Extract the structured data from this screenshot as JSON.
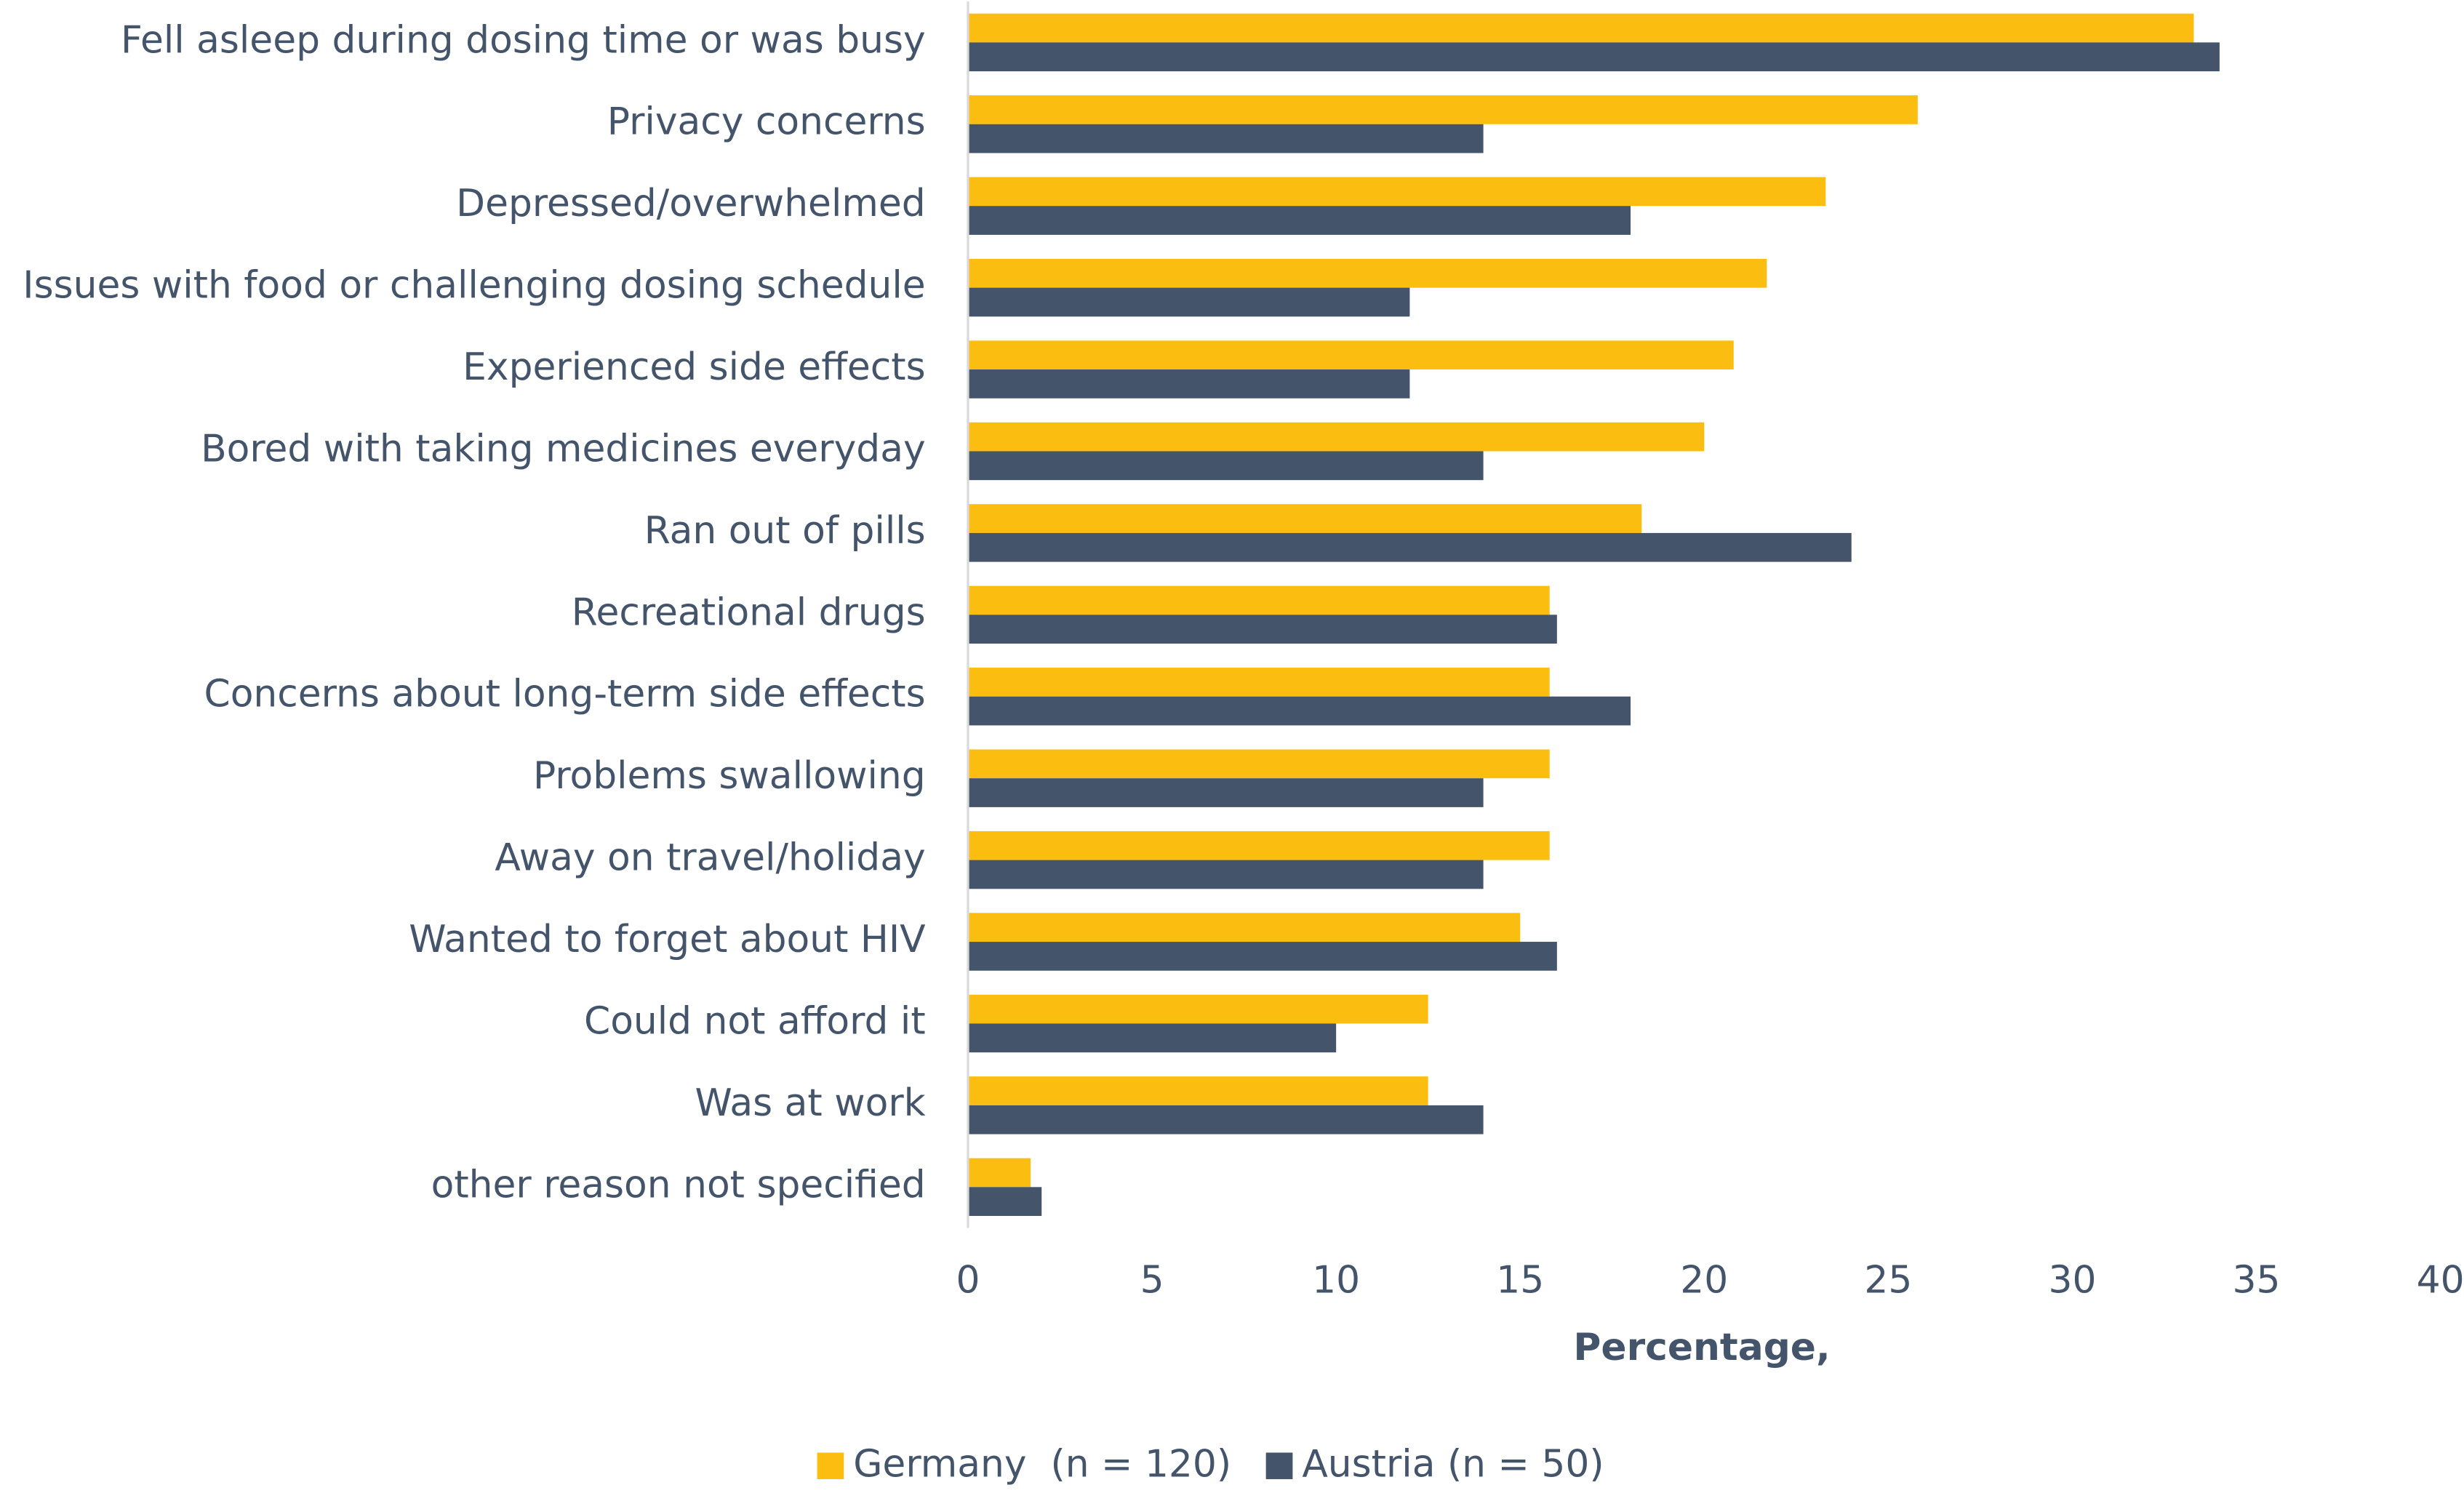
{
  "chart_data": {
    "type": "hbar",
    "categories": [
      "Fell asleep during dosing time or was busy",
      "Privacy concerns",
      "Depressed/overwhelmed",
      "Issues with food or challenging dosing schedule",
      "Experienced side effects",
      "Bored with taking medicines everyday",
      "Ran out of pills",
      "Recreational drugs",
      "Concerns about long-term side effects",
      "Problems swallowing",
      "Away on travel/holiday",
      "Wanted to forget about HIV",
      "Could not afford it",
      "Was at work",
      "other reason not specified"
    ],
    "series": [
      {
        "name": "Germany  (n = 120)",
        "color": "#fbbd0f",
        "values": [
          33.3,
          25.8,
          23.3,
          21.7,
          20.8,
          20.0,
          18.3,
          15.8,
          15.8,
          15.8,
          15.8,
          15.0,
          12.5,
          12.5,
          1.7
        ]
      },
      {
        "name": "Austria (n = 50)",
        "color": "#44546a",
        "values": [
          34.0,
          14.0,
          18.0,
          12.0,
          12.0,
          14.0,
          24.0,
          16.0,
          18.0,
          14.0,
          14.0,
          16.0,
          10.0,
          14.0,
          2.0
        ]
      }
    ],
    "xlabel": "Percentage,",
    "xlim": [
      0,
      40
    ],
    "xticks": [
      0,
      5,
      10,
      15,
      20,
      25,
      30,
      35,
      40
    ],
    "grid": false,
    "legend": "bottom"
  }
}
